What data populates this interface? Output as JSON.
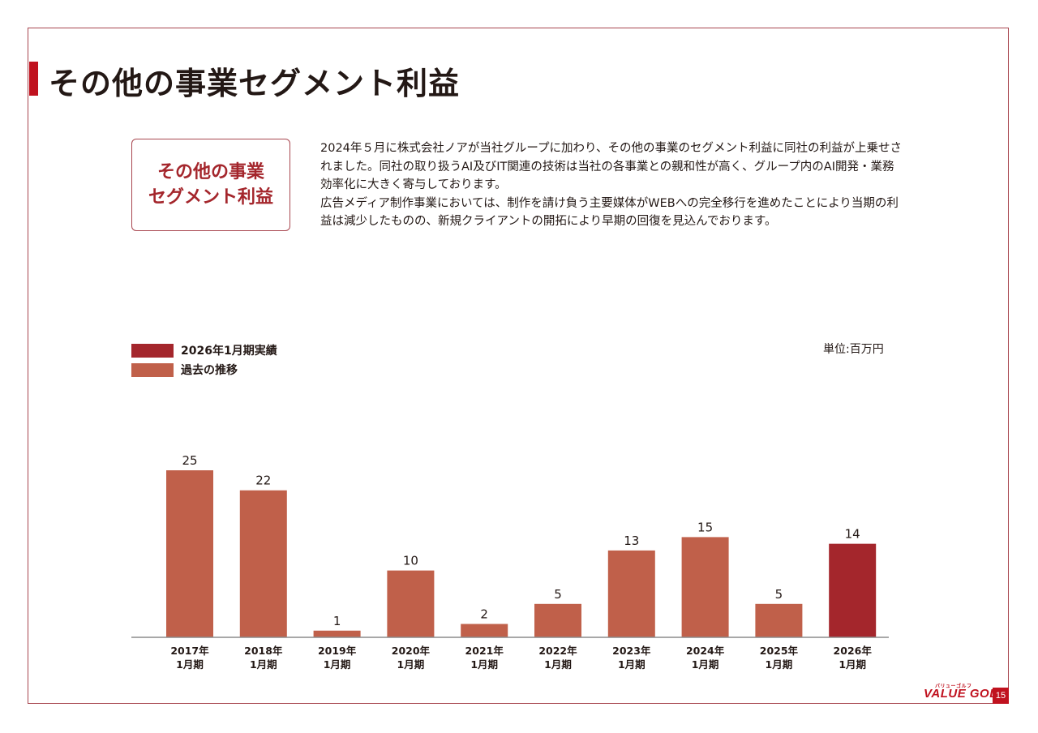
{
  "page": {
    "title": "その他の事業セグメント利益",
    "segment_box": {
      "line1": "その他の事業",
      "line2": "セグメント利益"
    },
    "description": [
      "2024年５月に株式会社ノアが当社グループに加わり、その他の事業のセグメント利益に同社の利益が上乗せされました。同社の取り扱うAI及びIT関連の技術は当社の各事業との親和性が高く、グループ内のAI開発・業務効率化に大きく寄与しております。",
      "広告メディア制作事業においては、制作を請け負う主要媒体がWEBへの完全移行を進めたことにより当期の利益は減少したものの、新規クライアントの開拓により早期の回復を見込んでおります。"
    ],
    "footer": {
      "logo_text": "VALUE GOLF",
      "logo_kana": "バリューゴルフ",
      "page_number": "15"
    }
  },
  "colors": {
    "accent": "#c0121f",
    "current_bar": "#a4262c",
    "past_bar": "#c0604a",
    "frame": "#a8464f",
    "axis": "#8c8c8c"
  },
  "chart_data": {
    "type": "bar",
    "title": "",
    "unit_label": "単位:百万円",
    "xlabel": "",
    "ylabel": "",
    "ylim": [
      0,
      25
    ],
    "grid": false,
    "legend_position": "top-left",
    "legend": [
      {
        "label": "2026年1月期実績",
        "color": "#a4262c"
      },
      {
        "label": "過去の推移",
        "color": "#c0604a"
      }
    ],
    "categories": [
      [
        "2017年",
        "1月期"
      ],
      [
        "2018年",
        "1月期"
      ],
      [
        "2019年",
        "1月期"
      ],
      [
        "2020年",
        "1月期"
      ],
      [
        "2021年",
        "1月期"
      ],
      [
        "2022年",
        "1月期"
      ],
      [
        "2023年",
        "1月期"
      ],
      [
        "2024年",
        "1月期"
      ],
      [
        "2025年",
        "1月期"
      ],
      [
        "2026年",
        "1月期"
      ]
    ],
    "values": [
      25,
      22,
      1,
      10,
      2,
      5,
      13,
      15,
      5,
      14
    ],
    "series_type": [
      "past",
      "past",
      "past",
      "past",
      "past",
      "past",
      "past",
      "past",
      "past",
      "current"
    ]
  }
}
